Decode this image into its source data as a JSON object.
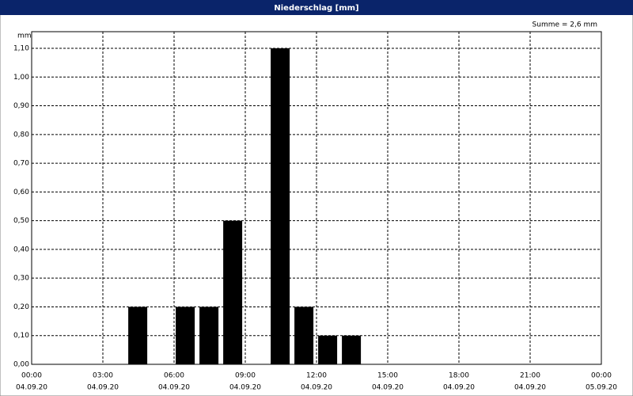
{
  "chart_data": {
    "type": "bar",
    "title": "Niederschlag [mm]",
    "y_unit": "mm",
    "annotation": "Summe = 2,6 mm",
    "x": [
      4,
      6,
      7,
      8,
      10,
      11,
      12,
      13
    ],
    "values": [
      0.2,
      0.2,
      0.2,
      0.5,
      1.1,
      0.2,
      0.1,
      0.1
    ],
    "color": "#000000",
    "xlim": [
      0,
      24
    ],
    "xticks": [
      {
        "value": 0,
        "label": "00:00"
      },
      {
        "value": 3,
        "label": "03:00"
      },
      {
        "value": 6,
        "label": "06:00"
      },
      {
        "value": 9,
        "label": "09:00"
      },
      {
        "value": 12,
        "label": "12:00"
      },
      {
        "value": 15,
        "label": "15:00"
      },
      {
        "value": 18,
        "label": "18:00"
      },
      {
        "value": 21,
        "label": "21:00"
      },
      {
        "value": 24,
        "label": "00:00"
      }
    ],
    "xtick_dates": [
      "04.09.20",
      "04.09.20",
      "04.09.20",
      "04.09.20",
      "04.09.20",
      "04.09.20",
      "04.09.20",
      "04.09.20",
      "05.09.20"
    ],
    "ylim": [
      0,
      1.1
    ],
    "yticks": [
      {
        "value": 0,
        "label": "0,00"
      },
      {
        "value": 0.1,
        "label": "0,10"
      },
      {
        "value": 0.2,
        "label": "0,20"
      },
      {
        "value": 0.3,
        "label": "0,30"
      },
      {
        "value": 0.4,
        "label": "0,40"
      },
      {
        "value": 0.5,
        "label": "0,50"
      },
      {
        "value": 0.6,
        "label": "0,60"
      },
      {
        "value": 0.7,
        "label": "0,70"
      },
      {
        "value": 0.8,
        "label": "0,80"
      },
      {
        "value": 0.9,
        "label": "0,90"
      },
      {
        "value": 1.0,
        "label": "1,00"
      },
      {
        "value": 1.1,
        "label": "1,10"
      }
    ],
    "grid": true
  }
}
